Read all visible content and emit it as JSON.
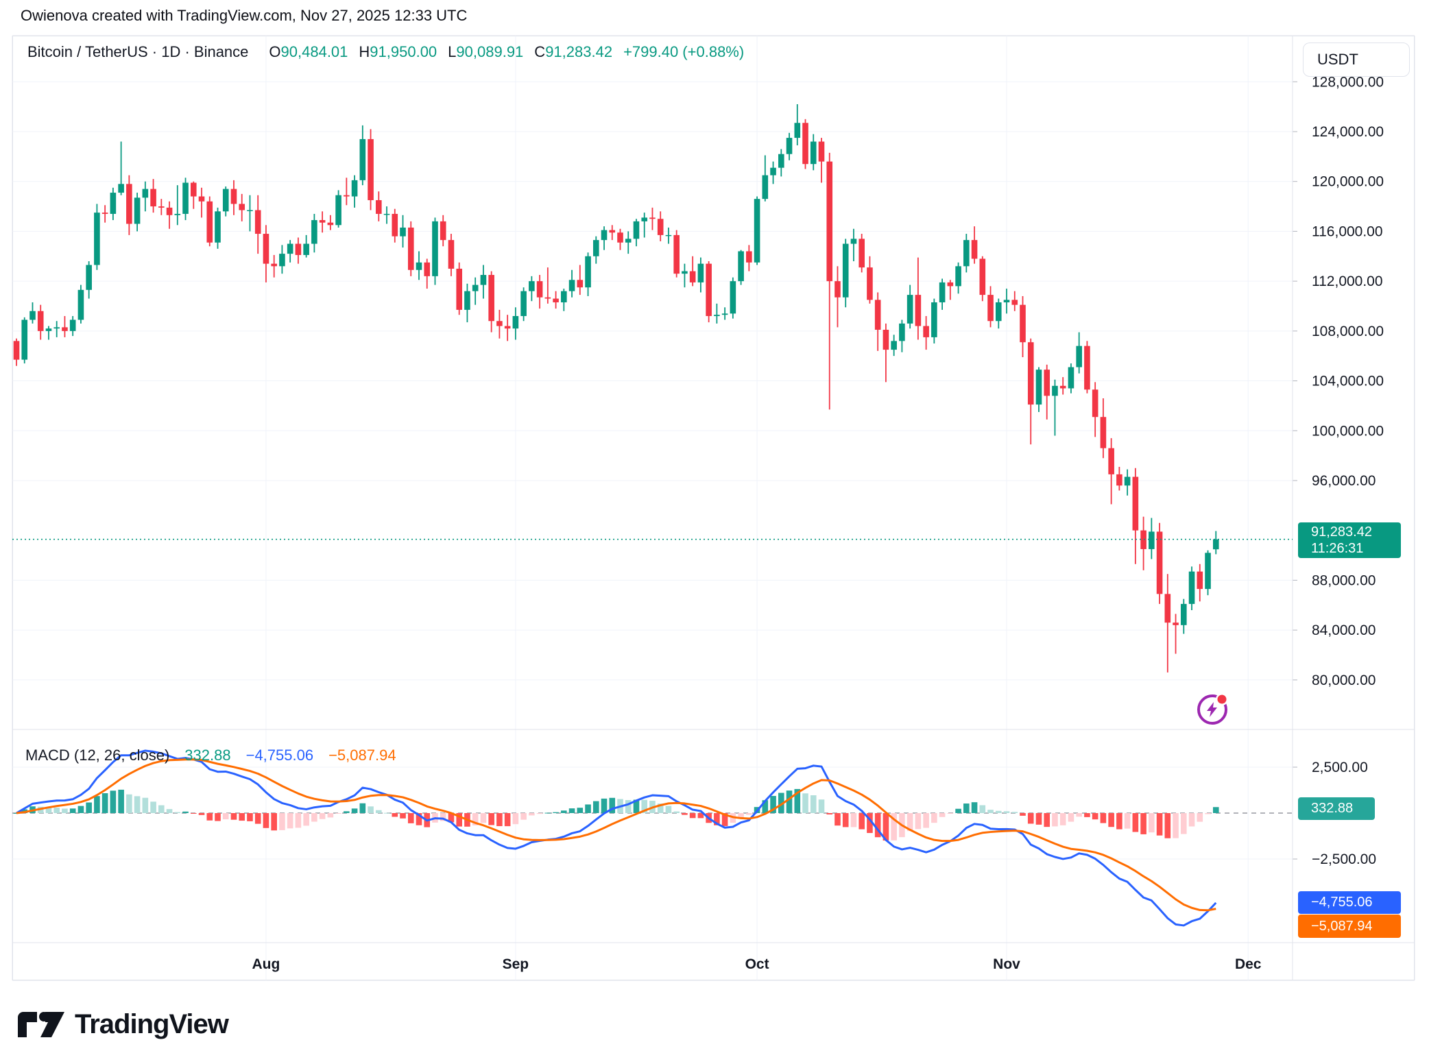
{
  "page_header": "Owienova created with TradingView.com, Nov 27, 2025 12:33 UTC",
  "symbol_bar": {
    "title": "Bitcoin / TetherUS · 1D · Binance",
    "o_label": "O",
    "o_value": "90,484.01",
    "h_label": "H",
    "h_value": "91,950.00",
    "l_label": "L",
    "l_value": "90,089.91",
    "c_label": "C",
    "c_value": "91,283.42",
    "change": "+799.40 (+0.88%)"
  },
  "currency_button": "USDT",
  "price_box": {
    "price": "91,283.42",
    "countdown": "11:26:31"
  },
  "macd_legend": {
    "title": "MACD (12, 26, close)",
    "hist_value": "332.88",
    "macd_value": "−4,755.06",
    "signal_value": "−5,087.94"
  },
  "macd_boxes": {
    "hist": "332.88",
    "macd": "−4,755.06",
    "signal": "−5,087.94"
  },
  "logo_text": "TradingView",
  "colors": {
    "up": "#089981",
    "down": "#F23645",
    "macd_line": "#2962FF",
    "signal_line": "#FF6D00",
    "hist_up": "#26A69A",
    "hist_up_fade": "#B2DFDB",
    "hist_down": "#FF5252",
    "hist_down_fade": "#FFCDD2",
    "grid": "#F0F3FA",
    "border": "#E0E3EB",
    "text": "#131722",
    "zero_dash": "#9598A1",
    "price_line": "#089981",
    "boost_purple": "#9C27B0",
    "dot_red": "#F23645"
  },
  "chart_data": {
    "type": "candlestick",
    "title": "Bitcoin / TetherUS · 1D · Binance",
    "interval": "1D",
    "start_date": "2025-07-01",
    "last_candle": {
      "open": 90484.01,
      "high": 91950.0,
      "low": 90089.91,
      "close": 91283.42
    },
    "price_axis_ticks": [
      {
        "text": "128,000.00",
        "price": 128000
      },
      {
        "text": "124,000.00",
        "price": 124000
      },
      {
        "text": "120,000.00",
        "price": 120000
      },
      {
        "text": "116,000.00",
        "price": 116000
      },
      {
        "text": "112,000.00",
        "price": 112000
      },
      {
        "text": "108,000.00",
        "price": 108000
      },
      {
        "text": "104,000.00",
        "price": 104000
      },
      {
        "text": "100,000.00",
        "price": 100000
      },
      {
        "text": "96,000.00",
        "price": 96000
      },
      {
        "text": "88,000.00",
        "price": 88000
      },
      {
        "text": "84,000.00",
        "price": 84000
      },
      {
        "text": "80,000.00",
        "price": 80000
      }
    ],
    "macd_axis_ticks": [
      {
        "text": "2,500.00",
        "value": 2500
      },
      {
        "text": "−2,500.00",
        "value": -2500
      }
    ],
    "x_axis_months": [
      {
        "label": "Aug",
        "day_index": 31
      },
      {
        "label": "Sep",
        "day_index": 62
      },
      {
        "label": "Oct",
        "day_index": 92
      },
      {
        "label": "Nov",
        "day_index": 123
      },
      {
        "label": "Dec",
        "day_index": 153
      }
    ],
    "current_price": 91283.42,
    "indicator": {
      "name": "MACD",
      "fast": 12,
      "slow": 26,
      "signal": 9,
      "source": "close",
      "last_values": {
        "histogram": 332.88,
        "macd": -4755.06,
        "signal": -5087.94
      }
    },
    "candles": [
      [
        107200,
        107400,
        105200,
        105700
      ],
      [
        105700,
        109100,
        105400,
        108900
      ],
      [
        108900,
        110300,
        108600,
        109600
      ],
      [
        109600,
        110100,
        107300,
        108000
      ],
      [
        108000,
        108400,
        107300,
        108200
      ],
      [
        108200,
        108800,
        107500,
        108300
      ],
      [
        108300,
        109200,
        107500,
        108000
      ],
      [
        108000,
        109200,
        107600,
        108900
      ],
      [
        108900,
        111700,
        108600,
        111300
      ],
      [
        111300,
        113600,
        110600,
        113300
      ],
      [
        113300,
        118200,
        112900,
        117500
      ],
      [
        117500,
        118100,
        116700,
        117400
      ],
      [
        117400,
        119500,
        116900,
        119100
      ],
      [
        119100,
        123200,
        118900,
        119800
      ],
      [
        119800,
        120500,
        115700,
        116600
      ],
      [
        116600,
        119100,
        116000,
        118700
      ],
      [
        118700,
        120000,
        117600,
        119400
      ],
      [
        119400,
        120200,
        117500,
        118000
      ],
      [
        118000,
        118600,
        117300,
        117900
      ],
      [
        117900,
        118400,
        116200,
        117300
      ],
      [
        117300,
        119700,
        116500,
        117400
      ],
      [
        117400,
        120300,
        116900,
        119900
      ],
      [
        119900,
        120000,
        117800,
        118800
      ],
      [
        118800,
        119500,
        117100,
        118400
      ],
      [
        118400,
        118800,
        114800,
        115100
      ],
      [
        115100,
        117900,
        114600,
        117600
      ],
      [
        117600,
        119600,
        117200,
        119400
      ],
      [
        119400,
        120100,
        117300,
        118200
      ],
      [
        118200,
        119000,
        116800,
        117700
      ],
      [
        117700,
        118900,
        116000,
        117700
      ],
      [
        117700,
        118900,
        114200,
        115800
      ],
      [
        115800,
        116500,
        111900,
        113400
      ],
      [
        113400,
        114100,
        112300,
        113200
      ],
      [
        113200,
        114900,
        112600,
        114200
      ],
      [
        114200,
        115300,
        113500,
        115000
      ],
      [
        115000,
        115500,
        113400,
        114100
      ],
      [
        114100,
        115700,
        113900,
        115000
      ],
      [
        115000,
        117400,
        114300,
        116900
      ],
      [
        116900,
        117600,
        115900,
        116700
      ],
      [
        116700,
        117300,
        116100,
        116500
      ],
      [
        116500,
        119300,
        116300,
        118900
      ],
      [
        118900,
        120300,
        118100,
        118800
      ],
      [
        118800,
        120500,
        117900,
        120100
      ],
      [
        120100,
        124500,
        119700,
        123400
      ],
      [
        123400,
        124200,
        117700,
        118500
      ],
      [
        118500,
        119200,
        116800,
        117400
      ],
      [
        117400,
        118000,
        116600,
        117400
      ],
      [
        117400,
        117800,
        115100,
        115600
      ],
      [
        115600,
        117300,
        114700,
        116300
      ],
      [
        116300,
        116800,
        112400,
        112900
      ],
      [
        112900,
        114400,
        112100,
        113500
      ],
      [
        113500,
        113800,
        111400,
        112400
      ],
      [
        112400,
        117100,
        111700,
        116800
      ],
      [
        116800,
        117300,
        114800,
        115300
      ],
      [
        115300,
        115800,
        112400,
        113000
      ],
      [
        113000,
        113500,
        109300,
        109700
      ],
      [
        109700,
        111800,
        108700,
        111200
      ],
      [
        111200,
        112300,
        110100,
        111700
      ],
      [
        111700,
        113300,
        110600,
        112500
      ],
      [
        112500,
        112800,
        107900,
        108800
      ],
      [
        108800,
        109700,
        107400,
        108400
      ],
      [
        108400,
        109300,
        107200,
        108200
      ],
      [
        108200,
        109900,
        107300,
        109200
      ],
      [
        109200,
        111500,
        108800,
        111200
      ],
      [
        111200,
        112400,
        110400,
        112000
      ],
      [
        112000,
        112500,
        109800,
        110700
      ],
      [
        110700,
        113100,
        110200,
        110600
      ],
      [
        110600,
        111200,
        109800,
        110300
      ],
      [
        110300,
        111400,
        109600,
        111200
      ],
      [
        111200,
        112900,
        110700,
        112100
      ],
      [
        112100,
        113300,
        110900,
        111500
      ],
      [
        111500,
        114300,
        110800,
        114000
      ],
      [
        114000,
        115600,
        113400,
        115300
      ],
      [
        115300,
        116400,
        114500,
        116100
      ],
      [
        116100,
        116500,
        115300,
        115900
      ],
      [
        115900,
        116200,
        114500,
        115100
      ],
      [
        115100,
        116000,
        114200,
        115400
      ],
      [
        115400,
        117000,
        114800,
        116800
      ],
      [
        116800,
        117500,
        115500,
        117100
      ],
      [
        117100,
        117900,
        116100,
        117000
      ],
      [
        117000,
        117600,
        115200,
        115700
      ],
      [
        115700,
        116300,
        115000,
        115700
      ],
      [
        115700,
        116100,
        112300,
        112600
      ],
      [
        112600,
        113400,
        111500,
        112800
      ],
      [
        112800,
        114000,
        111600,
        111900
      ],
      [
        111900,
        113900,
        111100,
        113400
      ],
      [
        113400,
        113600,
        108700,
        109200
      ],
      [
        109200,
        110200,
        108600,
        109300
      ],
      [
        109300,
        109900,
        108900,
        109400
      ],
      [
        109400,
        112300,
        109000,
        112000
      ],
      [
        112000,
        114500,
        111700,
        114400
      ],
      [
        114400,
        114900,
        112800,
        113500
      ],
      [
        113500,
        118800,
        113300,
        118600
      ],
      [
        118600,
        122100,
        118400,
        120500
      ],
      [
        120500,
        121600,
        119800,
        121100
      ],
      [
        121100,
        122600,
        120400,
        122200
      ],
      [
        122200,
        123900,
        121700,
        123500
      ],
      [
        123500,
        126200,
        122900,
        124700
      ],
      [
        124700,
        125000,
        121000,
        121400
      ],
      [
        121400,
        123800,
        120900,
        123200
      ],
      [
        123200,
        123500,
        119900,
        121600
      ],
      [
        121600,
        122300,
        101700,
        112000
      ],
      [
        112000,
        113200,
        108300,
        110700
      ],
      [
        110700,
        115400,
        109900,
        115000
      ],
      [
        115000,
        116200,
        113600,
        115400
      ],
      [
        115400,
        115800,
        112700,
        113100
      ],
      [
        113100,
        114000,
        110200,
        110500
      ],
      [
        110500,
        111100,
        106400,
        108100
      ],
      [
        108100,
        108600,
        103900,
        106500
      ],
      [
        106500,
        107700,
        106000,
        107200
      ],
      [
        107200,
        108900,
        106300,
        108600
      ],
      [
        108600,
        111700,
        108200,
        110900
      ],
      [
        110900,
        113900,
        107300,
        108400
      ],
      [
        108400,
        109200,
        106500,
        107500
      ],
      [
        107500,
        110600,
        107000,
        110300
      ],
      [
        110300,
        112200,
        109700,
        111900
      ],
      [
        111900,
        112100,
        110500,
        111600
      ],
      [
        111600,
        113500,
        111000,
        113200
      ],
      [
        113200,
        115800,
        112700,
        115300
      ],
      [
        115300,
        116400,
        113400,
        113800
      ],
      [
        113800,
        114000,
        110400,
        110900
      ],
      [
        110900,
        111600,
        108300,
        108800
      ],
      [
        108800,
        110600,
        108200,
        110300
      ],
      [
        110300,
        111400,
        109400,
        110500
      ],
      [
        110500,
        111200,
        109600,
        110100
      ],
      [
        110100,
        110800,
        105900,
        107100
      ],
      [
        107100,
        107400,
        98900,
        102100
      ],
      [
        102100,
        105100,
        101500,
        104900
      ],
      [
        104900,
        105300,
        100900,
        102800
      ],
      [
        102800,
        104100,
        99600,
        103600
      ],
      [
        103600,
        104300,
        102900,
        103400
      ],
      [
        103400,
        105400,
        103000,
        105100
      ],
      [
        105100,
        107900,
        104600,
        106800
      ],
      [
        106800,
        107200,
        103000,
        103300
      ],
      [
        103300,
        103900,
        99500,
        101100
      ],
      [
        101100,
        102600,
        97800,
        98600
      ],
      [
        98600,
        99400,
        94100,
        96500
      ],
      [
        96500,
        97100,
        95200,
        95600
      ],
      [
        95600,
        96900,
        94800,
        96300
      ],
      [
        96300,
        97000,
        89300,
        92000
      ],
      [
        92000,
        93100,
        88800,
        90500
      ],
      [
        90500,
        93000,
        89700,
        91900
      ],
      [
        91900,
        92600,
        86100,
        86900
      ],
      [
        86900,
        88500,
        80600,
        84600
      ],
      [
        84600,
        85300,
        82100,
        84400
      ],
      [
        84400,
        86500,
        83700,
        86100
      ],
      [
        86100,
        89100,
        85600,
        88700
      ],
      [
        88700,
        89300,
        86300,
        87300
      ],
      [
        87300,
        90400,
        86800,
        90200
      ],
      [
        90484,
        91950,
        90089,
        91283
      ]
    ]
  }
}
